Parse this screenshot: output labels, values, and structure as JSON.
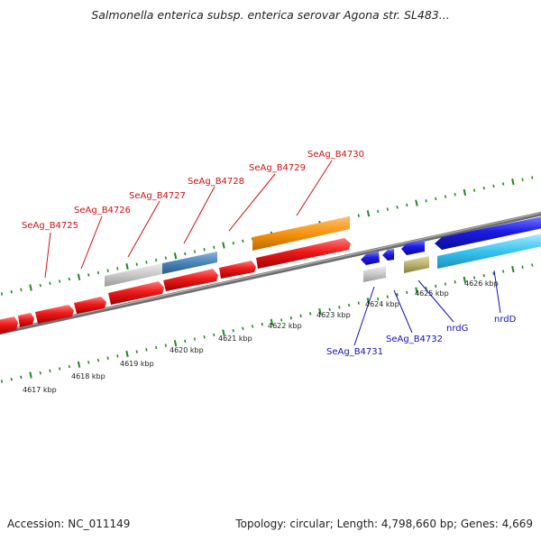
{
  "genome": {
    "title": "Salmonella enterica subsp. enterica serovar Agona str. SL483...",
    "accession": "Accession: NC_011149",
    "summary": "Topology: circular; Length: 4,798,660 bp; Genes: 4,669"
  },
  "colors": {
    "forward_cds": "#e8161c",
    "reverse_cds": "#1a1ae6",
    "orange_gene": "#f5930f",
    "light_blue_gene": "#38c4ee",
    "steelblue_gene": "#4a84b8",
    "grey_gene": "#c4c4c4",
    "olive_gene": "#b9b06e",
    "backbone": "#8a8a8a",
    "ticks": "#1f8a1f",
    "forward_label": "#d01010",
    "reverse_label": "#1212c0"
  },
  "kbp_labels": [
    "4617 kbp",
    "4618 kbp",
    "4619 kbp",
    "4620 kbp",
    "4621 kbp",
    "4622 kbp",
    "4623 kbp",
    "4624 kbp",
    "4625 kbp",
    "4626 kbp"
  ],
  "forward_gene_labels": [
    "SeAg_B4725",
    "SeAg_B4726",
    "SeAg_B4727",
    "SeAg_B4728",
    "SeAg_B4729",
    "SeAg_B4730"
  ],
  "reverse_gene_labels": [
    "SeAg_B4731",
    "SeAg_B4732",
    "nrdG",
    "nrdD"
  ]
}
